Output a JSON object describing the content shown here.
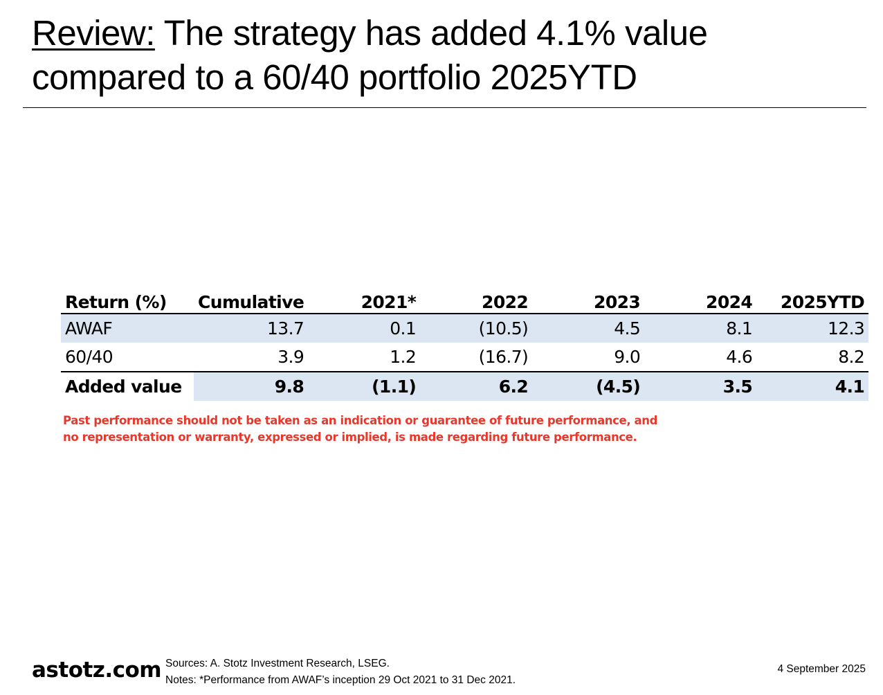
{
  "title": {
    "prefix": "Review:",
    "line1_rest": " The strategy has added 4.1% value",
    "line2": "compared to a 60/40 portfolio 2025YTD"
  },
  "table": {
    "headers": [
      "Return (%)",
      "Cumulative",
      "2021*",
      "2022",
      "2023",
      "2024",
      "2025YTD"
    ],
    "rows": [
      {
        "label": "AWAF",
        "values": [
          "13.7",
          "0.1",
          "(10.5)",
          "4.5",
          "8.1",
          "12.3"
        ]
      },
      {
        "label": "60/40",
        "values": [
          "3.9",
          "1.2",
          "(16.7)",
          "9.0",
          "4.6",
          "8.2"
        ]
      },
      {
        "label": "Added value",
        "values": [
          "9.8",
          "(1.1)",
          "6.2",
          "(4.5)",
          "3.5",
          "4.1"
        ]
      }
    ]
  },
  "disclaimer": {
    "line1": "Past performance should not be taken as an indication or guarantee of future performance, and",
    "line2": "no representation or warranty, expressed or implied, is made regarding future performance."
  },
  "footer": {
    "logo": "astotz.com",
    "sources": "Sources: A. Stotz Investment Research, LSEG.",
    "notes": "Notes: *Performance from AWAF’s inception 29 Oct 2021 to 31 Dec 2021.",
    "date": "4 September 2025"
  },
  "colors": {
    "row_shade": "#dce6f2",
    "disclaimer": "#e8382c"
  }
}
